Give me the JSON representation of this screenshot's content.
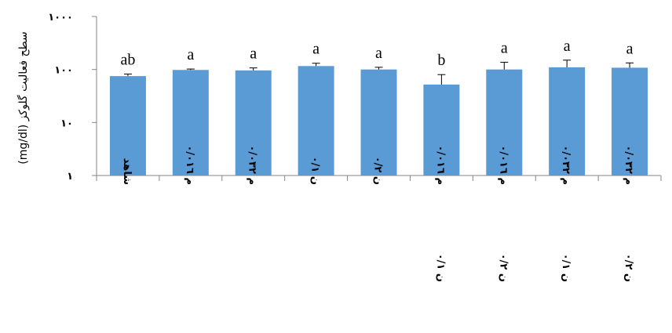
{
  "chart_data": {
    "type": "bar",
    "ylabel": "سطح فعالیت گلوکز (mg/dl)",
    "yscale": "log",
    "ylim": [
      1,
      1000
    ],
    "yticks": [
      {
        "value": 1,
        "label": "١"
      },
      {
        "value": 10,
        "label": "١٠"
      },
      {
        "value": 100,
        "label": "١٠٠"
      },
      {
        "value": 1000,
        "label": "١٠٠٠"
      }
    ],
    "bar_color": "#5b9bd5",
    "grid": false,
    "legend": "none",
    "categories": [
      {
        "lines": [
          "شاهد"
        ]
      },
      {
        "lines": [
          "م ٠/٠١٦"
        ]
      },
      {
        "lines": [
          "م ٠/٠٣٢"
        ]
      },
      {
        "lines": [
          "ن ٠/١"
        ]
      },
      {
        "lines": [
          "ن ٠/٢"
        ]
      },
      {
        "lines": [
          "م ٠/٠١٦",
          "ن ٠/١"
        ]
      },
      {
        "lines": [
          "م ٠/٠١٦",
          "ن ٠/٢"
        ]
      },
      {
        "lines": [
          "م ٠/٠٣٢",
          "ن ٠/١"
        ]
      },
      {
        "lines": [
          "م ٠/٠٣٢",
          "ن ٠/٢"
        ]
      }
    ],
    "values": [
      75,
      98,
      96,
      116,
      100,
      52,
      100,
      110,
      108
    ],
    "errors": [
      7,
      4,
      11,
      15,
      10,
      28,
      37,
      40,
      25
    ],
    "letters": [
      "ab",
      "a",
      "a",
      "a",
      "a",
      "b",
      "a",
      "a",
      "a"
    ]
  }
}
